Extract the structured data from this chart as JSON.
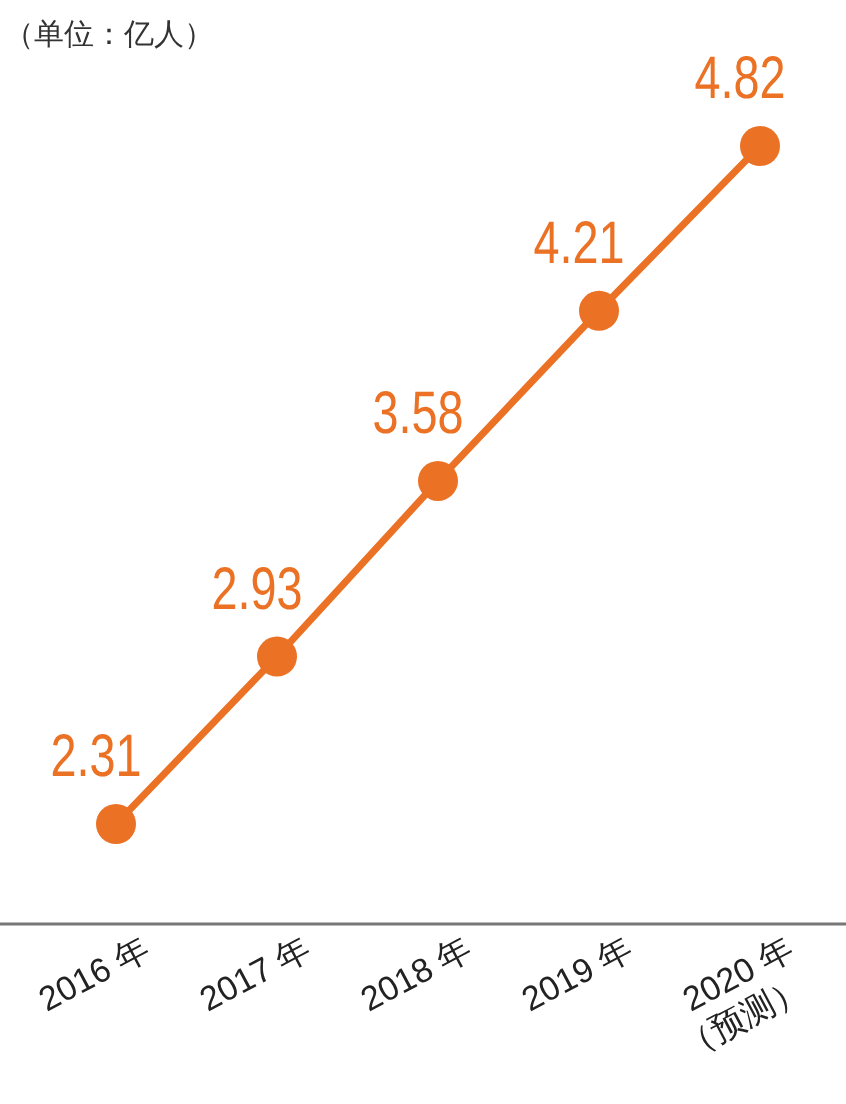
{
  "chart_data": {
    "type": "line",
    "annotations": [
      "（单位：亿人）"
    ],
    "categories": [
      "2016 年",
      "2017 年",
      "2018 年",
      "2019 年",
      "2020 年（预测）"
    ],
    "series": [
      {
        "color": "#eb7125",
        "values": [
          2.31,
          2.93,
          3.58,
          4.21,
          4.82
        ]
      }
    ],
    "data_labels": true,
    "marker": "circle",
    "line_style": "solid"
  }
}
